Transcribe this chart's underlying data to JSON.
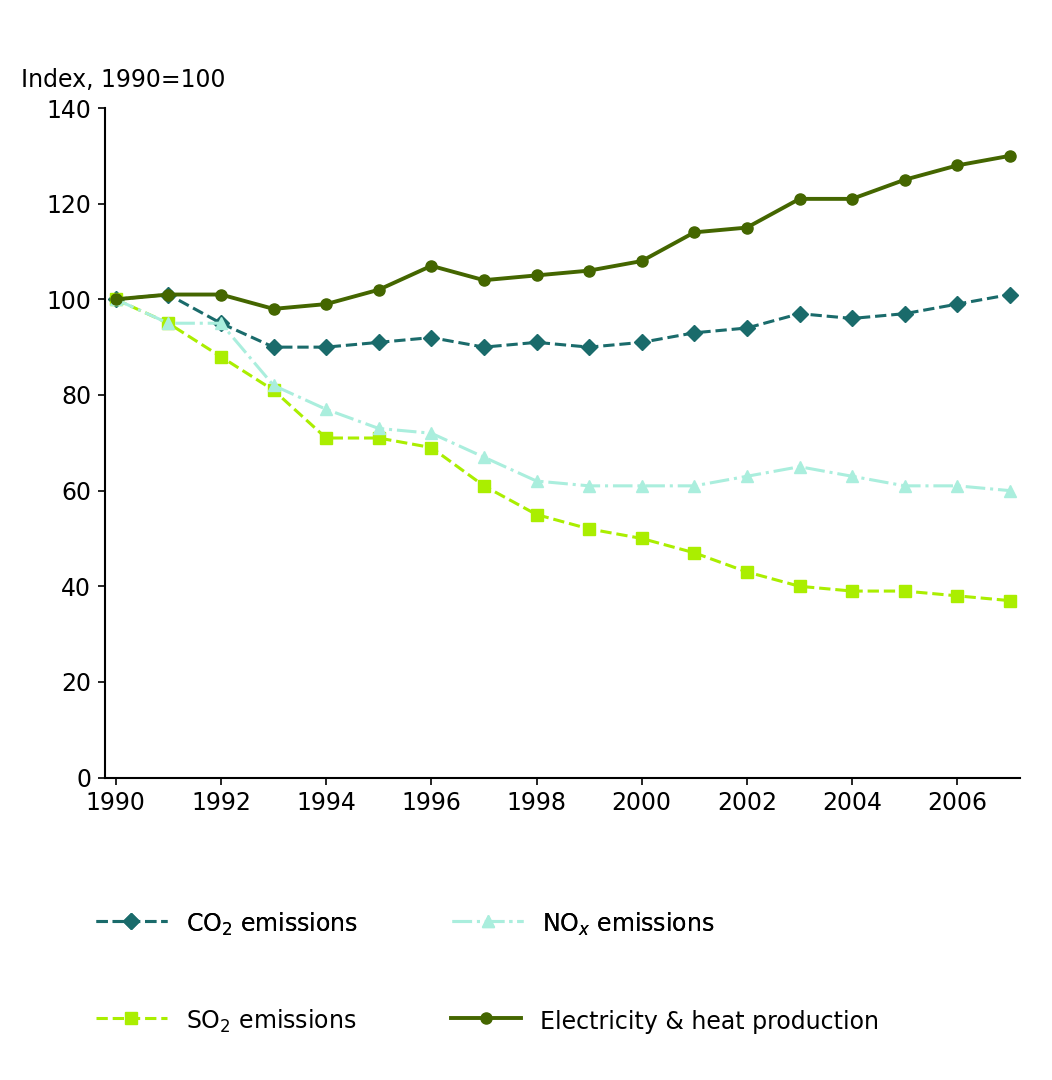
{
  "years": [
    1990,
    1991,
    1992,
    1993,
    1994,
    1995,
    1996,
    1997,
    1998,
    1999,
    2000,
    2001,
    2002,
    2003,
    2004,
    2005,
    2006,
    2007
  ],
  "co2": [
    100,
    101,
    95,
    90,
    90,
    91,
    92,
    90,
    91,
    90,
    91,
    93,
    94,
    97,
    96,
    97,
    99,
    101
  ],
  "so2": [
    100,
    95,
    88,
    81,
    71,
    71,
    69,
    61,
    55,
    52,
    50,
    47,
    43,
    40,
    39,
    39,
    38,
    37
  ],
  "nox": [
    100,
    95,
    95,
    82,
    77,
    73,
    72,
    67,
    62,
    61,
    61,
    61,
    63,
    65,
    63,
    61,
    61,
    60
  ],
  "elec": [
    100,
    101,
    101,
    98,
    99,
    102,
    107,
    104,
    105,
    106,
    108,
    114,
    115,
    121,
    121,
    125,
    128,
    130
  ],
  "co2_color": "#1a6b6b",
  "so2_color": "#aaee00",
  "nox_color": "#aaeedd",
  "elec_color": "#446600",
  "ylim": [
    0,
    140
  ],
  "yticks": [
    0,
    20,
    40,
    60,
    80,
    100,
    120,
    140
  ],
  "xlim_min": 1990,
  "xlim_max": 2007,
  "xticks": [
    1990,
    1992,
    1994,
    1996,
    1998,
    2000,
    2002,
    2004,
    2006
  ],
  "ylabel": "Index, 1990=100",
  "legend_co2": "CO$_2$ emissions",
  "legend_so2": "SO$_2$ emissions",
  "legend_nox": "NO$_x$ emissions",
  "legend_elec": "Electricity & heat production",
  "bg_color": "#ffffff",
  "tick_fontsize": 17,
  "legend_fontsize": 17
}
